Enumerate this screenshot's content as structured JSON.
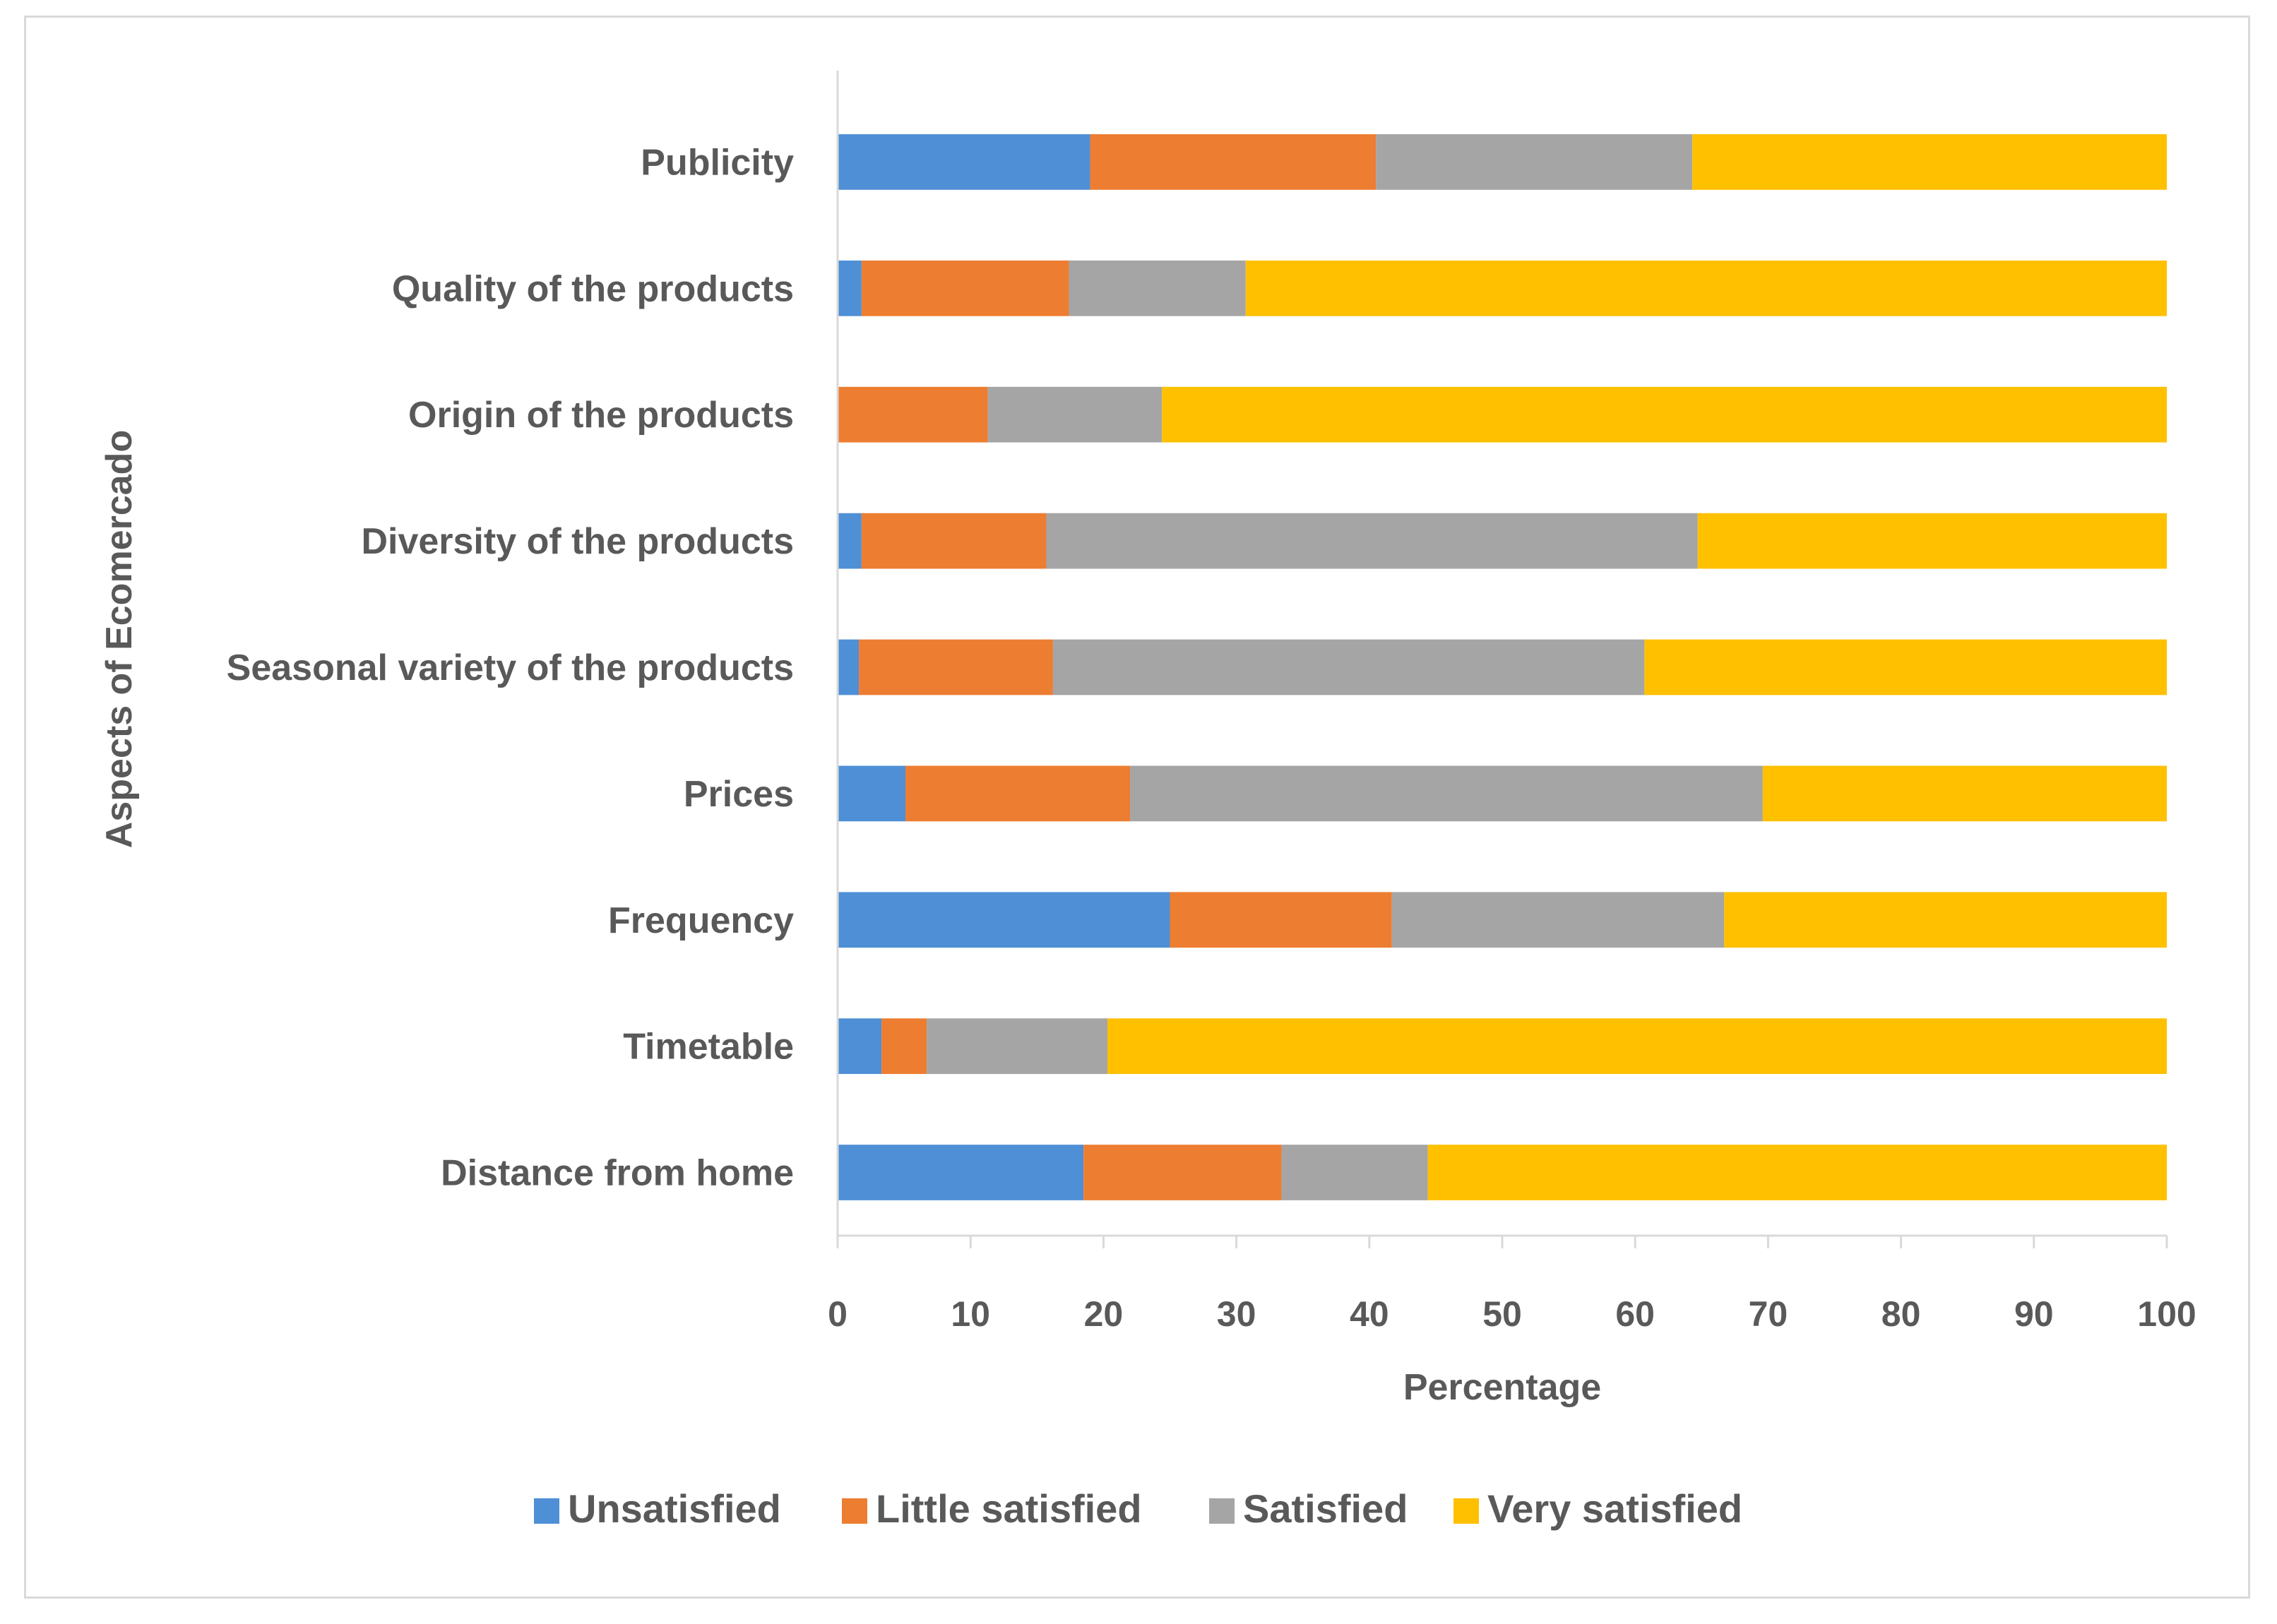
{
  "chart_data": {
    "type": "bar",
    "orientation": "horizontal",
    "stacked": true,
    "title": "",
    "xlabel": "Percentage",
    "ylabel": "Aspects of Ecomercado",
    "xlim": [
      0,
      100
    ],
    "x_ticks": [
      0,
      10,
      20,
      30,
      40,
      50,
      60,
      70,
      80,
      90,
      100
    ],
    "categories": [
      "Distance from home",
      "Timetable",
      "Frequency",
      "Prices",
      "Seasonal variety of the products",
      "Diversity of the products",
      "Origin of the products",
      "Quality of the products",
      "Publicity"
    ],
    "series": [
      {
        "name": "Unsatisfied",
        "color": "#4f8fd6",
        "values": [
          18.5,
          3.3,
          25.0,
          5.1,
          1.6,
          1.8,
          0.0,
          1.8,
          19.0
        ]
      },
      {
        "name": "Little satisfied",
        "color": "#ed7d31",
        "values": [
          14.9,
          3.4,
          16.7,
          16.9,
          14.6,
          13.9,
          11.3,
          15.6,
          21.5
        ]
      },
      {
        "name": "Satisfied",
        "color": "#a5a5a5",
        "values": [
          11.0,
          13.6,
          25.0,
          47.6,
          44.5,
          49.0,
          13.1,
          13.3,
          23.8
        ]
      },
      {
        "name": "Very satisfied",
        "color": "#ffc000",
        "values": [
          55.6,
          79.7,
          33.3,
          30.4,
          39.3,
          35.3,
          75.6,
          69.3,
          35.7
        ]
      }
    ],
    "legend_position": "bottom",
    "grid": false
  }
}
